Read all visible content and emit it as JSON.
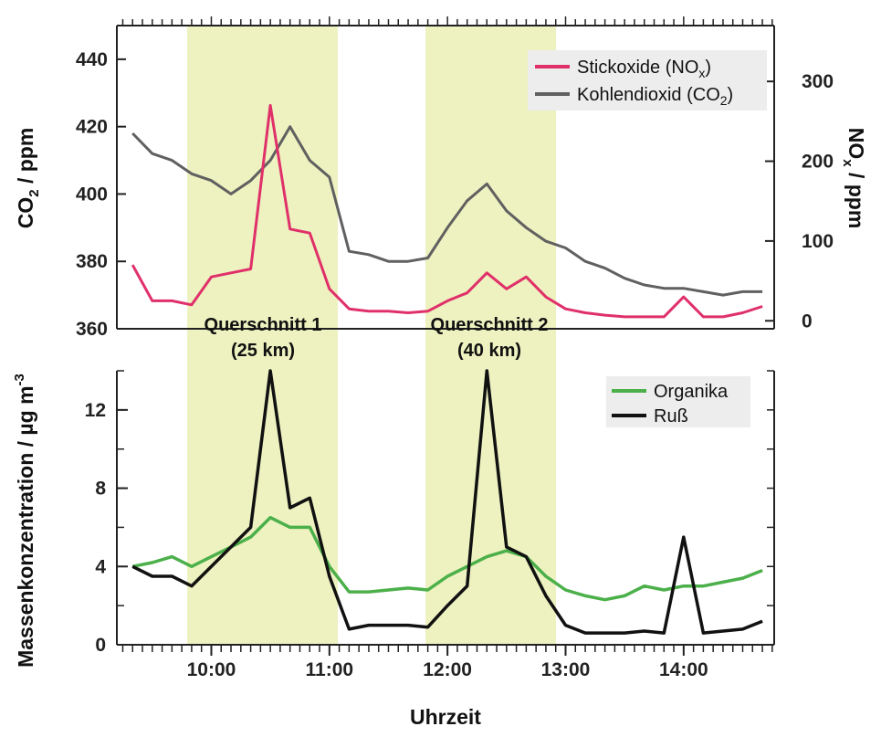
{
  "chart_data": [
    {
      "type": "line",
      "panel": "top",
      "x_unit": "time",
      "ylabel_left": "CO2 / ppm",
      "ylabel_left_parts": {
        "main": "CO",
        "sub": "2",
        "rest": " / ppm"
      },
      "ylabel_right": "NOx / ppm",
      "ylabel_right_parts": {
        "main": "NO",
        "sub": "x",
        "rest": " / ppm"
      },
      "ylim_left": [
        360,
        450
      ],
      "ylim_right": [
        -10,
        370
      ],
      "yticks_left": [
        "360",
        "380",
        "400",
        "420",
        "440"
      ],
      "yticks_right": [
        "0",
        "100",
        "200",
        "300"
      ],
      "legend": {
        "placement": "top-right",
        "entries": [
          {
            "pre": "Stickoxide (NO",
            "sub": "x",
            "post": ")",
            "color": "#e0306a"
          },
          {
            "pre": "Kohlendioxid (CO",
            "sub": "2",
            "post": ")",
            "color": "#606060"
          }
        ]
      },
      "series": [
        {
          "name": "Kohlendioxid (CO2)",
          "axis": "left",
          "color": "#606060",
          "x": [
            "09:20",
            "09:30",
            "09:40",
            "09:50",
            "10:00",
            "10:10",
            "10:20",
            "10:30",
            "10:40",
            "10:50",
            "11:00",
            "11:10",
            "11:20",
            "11:30",
            "11:40",
            "11:50",
            "12:00",
            "12:10",
            "12:20",
            "12:30",
            "12:40",
            "12:50",
            "13:00",
            "13:10",
            "13:20",
            "13:30",
            "13:40",
            "13:50",
            "14:00",
            "14:10",
            "14:20",
            "14:30",
            "14:40"
          ],
          "values": [
            418,
            412,
            410,
            406,
            404,
            400,
            404,
            410,
            420,
            410,
            405,
            383,
            382,
            380,
            380,
            381,
            390,
            398,
            403,
            395,
            390,
            386,
            384,
            380,
            378,
            375,
            373,
            372,
            372,
            371,
            370,
            371,
            371
          ]
        },
        {
          "name": "Stickoxide (NOx)",
          "axis": "right",
          "color": "#e0306a",
          "x": [
            "09:20",
            "09:30",
            "09:40",
            "09:50",
            "10:00",
            "10:10",
            "10:20",
            "10:30",
            "10:40",
            "10:50",
            "11:00",
            "11:10",
            "11:20",
            "11:30",
            "11:40",
            "11:50",
            "12:00",
            "12:10",
            "12:20",
            "12:30",
            "12:40",
            "12:50",
            "13:00",
            "13:10",
            "13:20",
            "13:30",
            "13:40",
            "13:50",
            "14:00",
            "14:10",
            "14:20",
            "14:30",
            "14:40"
          ],
          "values": [
            70,
            25,
            25,
            20,
            55,
            60,
            65,
            270,
            115,
            110,
            40,
            15,
            12,
            12,
            10,
            12,
            25,
            35,
            60,
            40,
            55,
            30,
            15,
            10,
            7,
            5,
            5,
            5,
            30,
            5,
            5,
            10,
            18
          ]
        }
      ]
    },
    {
      "type": "line",
      "panel": "bottom",
      "xlabel": "Uhrzeit",
      "x_ticks": [
        "10:00",
        "11:00",
        "12:00",
        "13:00",
        "14:00"
      ],
      "ylabel": "Massenkonzentration / µg m-3",
      "ylabel_parts": {
        "main": "Massenkonzentration / µg m",
        "sup": "-3"
      },
      "ylim": [
        0,
        14
      ],
      "yticks": [
        "0",
        "4",
        "8",
        "12"
      ],
      "annotations": [
        {
          "line1": "Querschnitt 1",
          "line2": "(25 km)"
        },
        {
          "line1": "Querschnitt 2",
          "line2": "(40 km)"
        }
      ],
      "legend": {
        "placement": "top-right",
        "entries": [
          {
            "label": "Organika",
            "color": "#4cb04a"
          },
          {
            "label": "Ruß",
            "color": "#111111"
          }
        ]
      },
      "series": [
        {
          "name": "Organika",
          "color": "#4cb04a",
          "x": [
            "09:20",
            "09:30",
            "09:40",
            "09:50",
            "10:00",
            "10:10",
            "10:20",
            "10:30",
            "10:40",
            "10:50",
            "11:00",
            "11:10",
            "11:20",
            "11:30",
            "11:40",
            "11:50",
            "12:00",
            "12:10",
            "12:20",
            "12:30",
            "12:40",
            "12:50",
            "13:00",
            "13:10",
            "13:20",
            "13:30",
            "13:40",
            "13:50",
            "14:00",
            "14:10",
            "14:20",
            "14:30",
            "14:40"
          ],
          "values": [
            4.0,
            4.2,
            4.5,
            4.0,
            4.5,
            5.0,
            5.5,
            6.5,
            6.0,
            6.0,
            4.0,
            2.7,
            2.7,
            2.8,
            2.9,
            2.8,
            3.5,
            4.0,
            4.5,
            4.8,
            4.5,
            3.5,
            2.8,
            2.5,
            2.3,
            2.5,
            3.0,
            2.8,
            3.0,
            3.0,
            3.2,
            3.4,
            3.8
          ]
        },
        {
          "name": "Ruß",
          "color": "#111111",
          "x": [
            "09:20",
            "09:30",
            "09:40",
            "09:50",
            "10:00",
            "10:10",
            "10:20",
            "10:30",
            "10:40",
            "10:50",
            "11:00",
            "11:10",
            "11:20",
            "11:30",
            "11:40",
            "11:50",
            "12:00",
            "12:10",
            "12:20",
            "12:30",
            "12:40",
            "12:50",
            "13:00",
            "13:10",
            "13:20",
            "13:30",
            "13:40",
            "13:50",
            "14:00",
            "14:10",
            "14:20",
            "14:30",
            "14:40"
          ],
          "values": [
            4.0,
            3.5,
            3.5,
            3.0,
            4.0,
            5.0,
            6.0,
            14.0,
            7.0,
            7.5,
            3.5,
            0.8,
            1.0,
            1.0,
            1.0,
            0.9,
            2.0,
            3.0,
            14.0,
            5.0,
            4.5,
            2.5,
            1.0,
            0.6,
            0.6,
            0.6,
            0.7,
            0.6,
            5.5,
            0.6,
            0.7,
            0.8,
            1.2
          ]
        }
      ]
    }
  ]
}
